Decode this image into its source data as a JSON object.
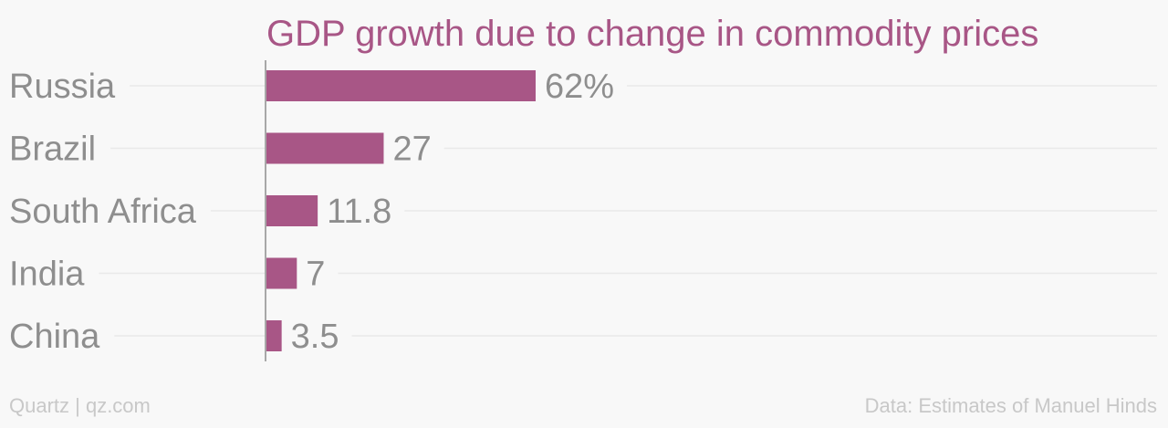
{
  "chart_data": {
    "type": "bar",
    "orientation": "horizontal",
    "title": "GDP growth due to change in commodity prices",
    "categories": [
      "Russia",
      "Brazil",
      "South Africa",
      "India",
      "China"
    ],
    "values": [
      62,
      27,
      11.8,
      7,
      3.5
    ],
    "data_labels": [
      "62%",
      "27",
      "11.8",
      "7",
      "3.5"
    ],
    "xlabel": "",
    "ylabel": "",
    "xlim": [
      0,
      62
    ],
    "grid": true,
    "legend": "none"
  },
  "footer": {
    "source_brand": "Quartz | qz.com",
    "data_credit": "Data: Estimates of Manuel Hinds"
  },
  "colors": {
    "bar": "#a85686",
    "title": "#a85686",
    "category_label": "#8e8e8e",
    "value_label": "#8e8e8e",
    "gridline": "#e9e9e9",
    "axis": "#8e8e8e",
    "footer": "#c8c8c8",
    "background": "#f8f8f8"
  }
}
